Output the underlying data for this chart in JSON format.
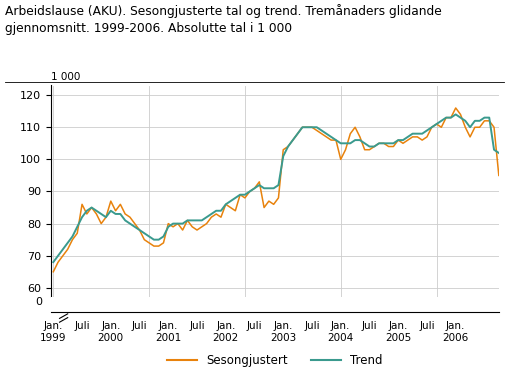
{
  "title": "Arbeidslause (AKU). Sesongjusterte tal og trend. Tremånaders glidande\ngjennomsnitt. 1999-2006. Absolutte tal i 1 000",
  "y_label_top": "1 000",
  "yticks_main": [
    60,
    70,
    80,
    90,
    100,
    110,
    120
  ],
  "ylim_main": [
    57,
    123
  ],
  "color_seasonadj": "#E8820C",
  "color_trend": "#3A9A8E",
  "legend_labels": [
    "Sesongjustert",
    "Trend"
  ],
  "sesongjustert": [
    65,
    68,
    70,
    72,
    75,
    77,
    86,
    83,
    85,
    83,
    80,
    82,
    87,
    84,
    86,
    83,
    82,
    80,
    78,
    75,
    74,
    73,
    73,
    74,
    80,
    79,
    80,
    78,
    81,
    79,
    78,
    79,
    80,
    82,
    83,
    82,
    86,
    85,
    84,
    89,
    88,
    90,
    91,
    93,
    85,
    87,
    86,
    88,
    103,
    104,
    106,
    108,
    110,
    110,
    110,
    109,
    108,
    107,
    106,
    106,
    100,
    103,
    108,
    110,
    107,
    103,
    103,
    104,
    105,
    105,
    104,
    104,
    106,
    105,
    106,
    107,
    107,
    106,
    107,
    110,
    111,
    110,
    113,
    113,
    116,
    114,
    110,
    107,
    110,
    110,
    112,
    112,
    110,
    95
  ],
  "trend": [
    68,
    70,
    72,
    74,
    76,
    79,
    82,
    84,
    85,
    84,
    83,
    82,
    84,
    83,
    83,
    81,
    80,
    79,
    78,
    77,
    76,
    75,
    75,
    76,
    79,
    80,
    80,
    80,
    81,
    81,
    81,
    81,
    82,
    83,
    84,
    84,
    86,
    87,
    88,
    89,
    89,
    90,
    91,
    92,
    91,
    91,
    91,
    92,
    101,
    104,
    106,
    108,
    110,
    110,
    110,
    110,
    109,
    108,
    107,
    106,
    105,
    105,
    105,
    106,
    106,
    105,
    104,
    104,
    105,
    105,
    105,
    105,
    106,
    106,
    107,
    108,
    108,
    108,
    109,
    110,
    111,
    112,
    113,
    113,
    114,
    113,
    112,
    110,
    112,
    112,
    113,
    113,
    103,
    102
  ],
  "x_tick_positions": [
    0,
    6,
    12,
    18,
    24,
    30,
    36,
    42,
    48,
    54,
    60,
    66,
    72,
    78,
    84
  ],
  "x_tick_labels": [
    "Jan.\n1999",
    "Juli",
    "Jan.\n2000",
    "Juli",
    "Jan.\n2001",
    "Juli",
    "Jan.\n2002",
    "Juli",
    "Jan.\n2003",
    "Juli",
    "Jan.\n2004",
    "Juli",
    "Jan.\n2005",
    "Juli",
    "Jan.\n2006"
  ]
}
